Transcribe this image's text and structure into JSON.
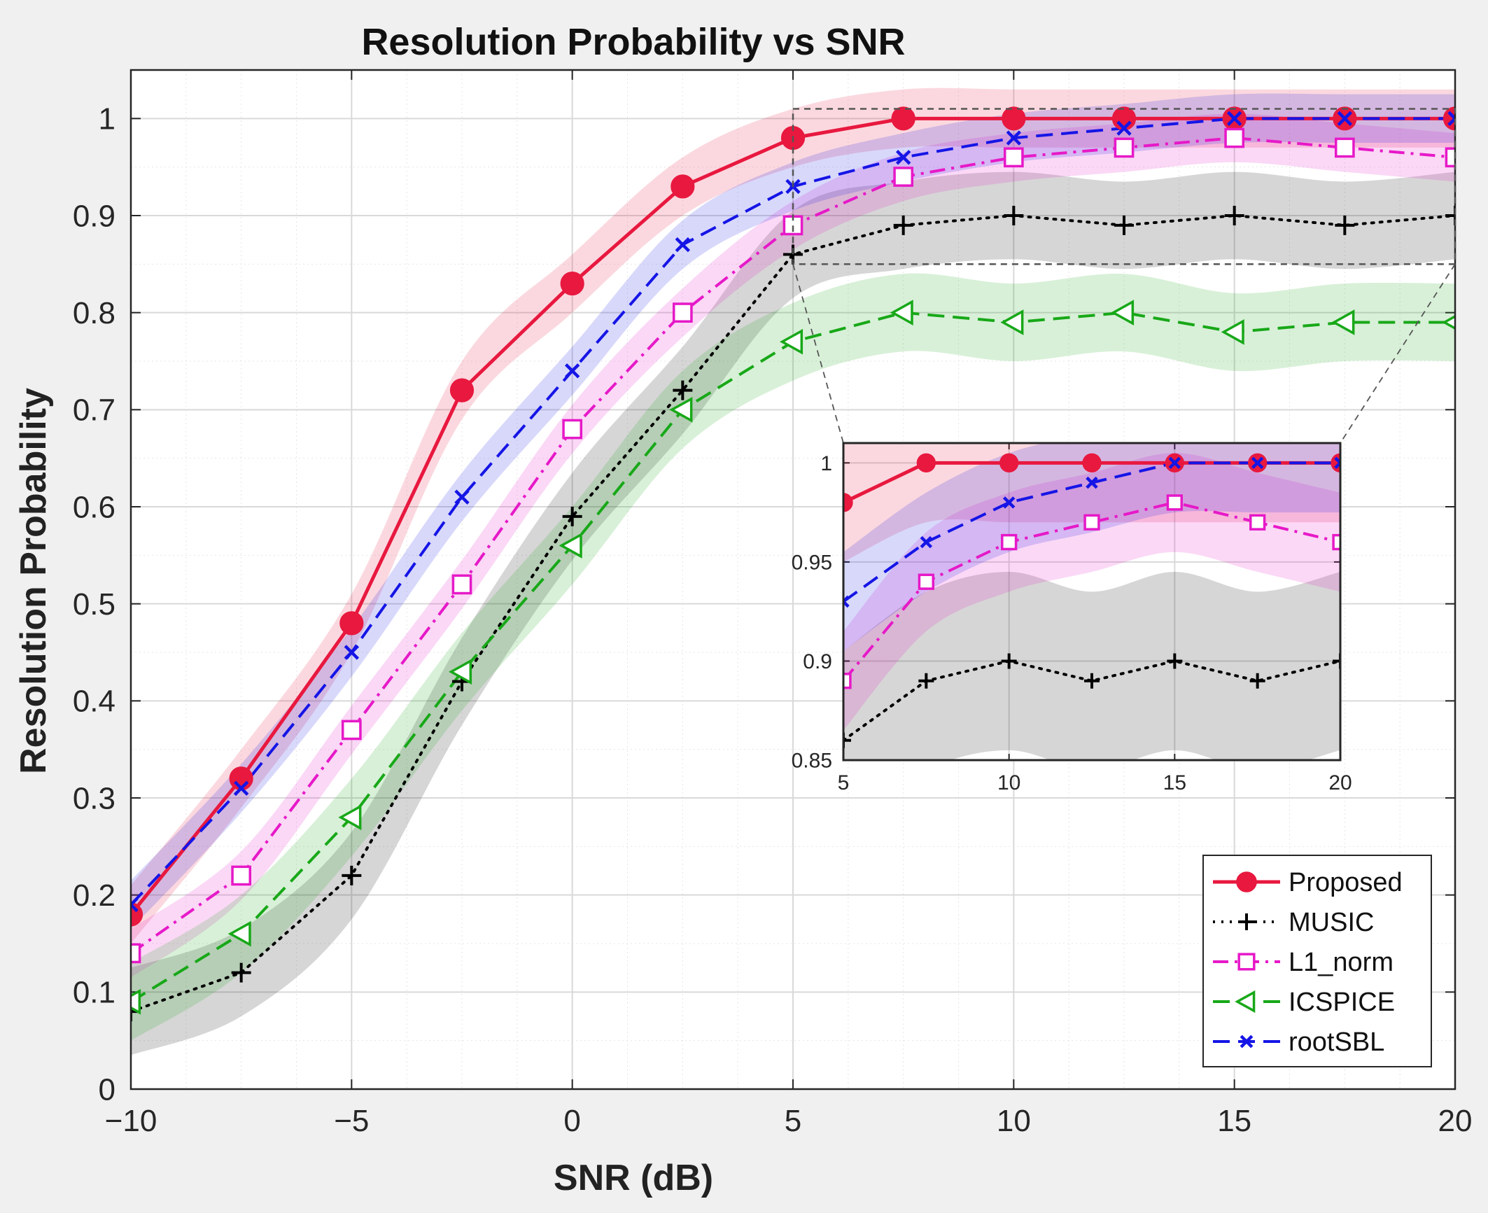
{
  "chart_data": {
    "type": "line",
    "title": "Resolution Probability vs SNR",
    "xlabel": "SNR (dB)",
    "ylabel": "Resolution Probability",
    "xlim": [
      -10,
      20
    ],
    "ylim": [
      0,
      1.05
    ],
    "grid": true,
    "x": [
      -10,
      -7.5,
      -5,
      -2.5,
      0,
      2.5,
      5,
      7.5,
      10,
      12.5,
      15,
      17.5,
      20
    ],
    "x_ticks": [
      -10,
      -5,
      0,
      5,
      10,
      15,
      20
    ],
    "x_tick_labels": [
      "−10",
      "−5",
      "0",
      "5",
      "10",
      "15",
      "20"
    ],
    "y_ticks": [
      0,
      0.1,
      0.2,
      0.3,
      0.4,
      0.5,
      0.6,
      0.7,
      0.8,
      0.9,
      1
    ],
    "y_tick_labels": [
      "0",
      "0.1",
      "0.2",
      "0.3",
      "0.4",
      "0.5",
      "0.6",
      "0.7",
      "0.8",
      "0.9",
      "1"
    ],
    "series": [
      {
        "name": "Proposed",
        "color": "#e8183f",
        "dash": "solid",
        "marker": "filled-circle",
        "band": 0.03,
        "values": [
          0.18,
          0.32,
          0.48,
          0.72,
          0.83,
          0.93,
          0.98,
          1.0,
          1.0,
          1.0,
          1.0,
          1.0,
          1.0
        ]
      },
      {
        "name": "MUSIC",
        "color": "#000000",
        "dash": "dotted",
        "marker": "plus",
        "band": 0.045,
        "values": [
          0.08,
          0.12,
          0.22,
          0.42,
          0.59,
          0.72,
          0.86,
          0.89,
          0.9,
          0.89,
          0.9,
          0.89,
          0.9
        ]
      },
      {
        "name": "L1_norm",
        "color": "#e619c8",
        "dash": "dashdot",
        "marker": "square",
        "band": 0.025,
        "values": [
          0.14,
          0.22,
          0.37,
          0.52,
          0.68,
          0.8,
          0.89,
          0.94,
          0.96,
          0.97,
          0.98,
          0.97,
          0.96
        ]
      },
      {
        "name": "ICSPICE",
        "color": "#18a818",
        "dash": "dashed",
        "marker": "triangle-left",
        "band": 0.04,
        "values": [
          0.09,
          0.16,
          0.28,
          0.43,
          0.56,
          0.7,
          0.77,
          0.8,
          0.79,
          0.8,
          0.78,
          0.79,
          0.79
        ]
      },
      {
        "name": "rootSBL",
        "color": "#1515e6",
        "dash": "dashed",
        "marker": "x",
        "band": 0.025,
        "values": [
          0.19,
          0.31,
          0.45,
          0.61,
          0.74,
          0.87,
          0.93,
          0.96,
          0.98,
          0.99,
          1.0,
          1.0,
          1.0
        ]
      }
    ],
    "inset": {
      "xlim": [
        5,
        20
      ],
      "ylim": [
        0.85,
        1.01
      ],
      "x_ticks": [
        5,
        10,
        15,
        20
      ],
      "x_tick_labels": [
        "5",
        "10",
        "15",
        "20"
      ],
      "y_ticks": [
        0.85,
        0.9,
        0.95,
        1
      ],
      "y_tick_labels": [
        "0.85",
        "0.9",
        "0.95",
        "1"
      ],
      "zoom_region": {
        "x": [
          5,
          20
        ],
        "y": [
          0.85,
          1.01
        ]
      }
    },
    "legend_position": "bottom-right"
  }
}
